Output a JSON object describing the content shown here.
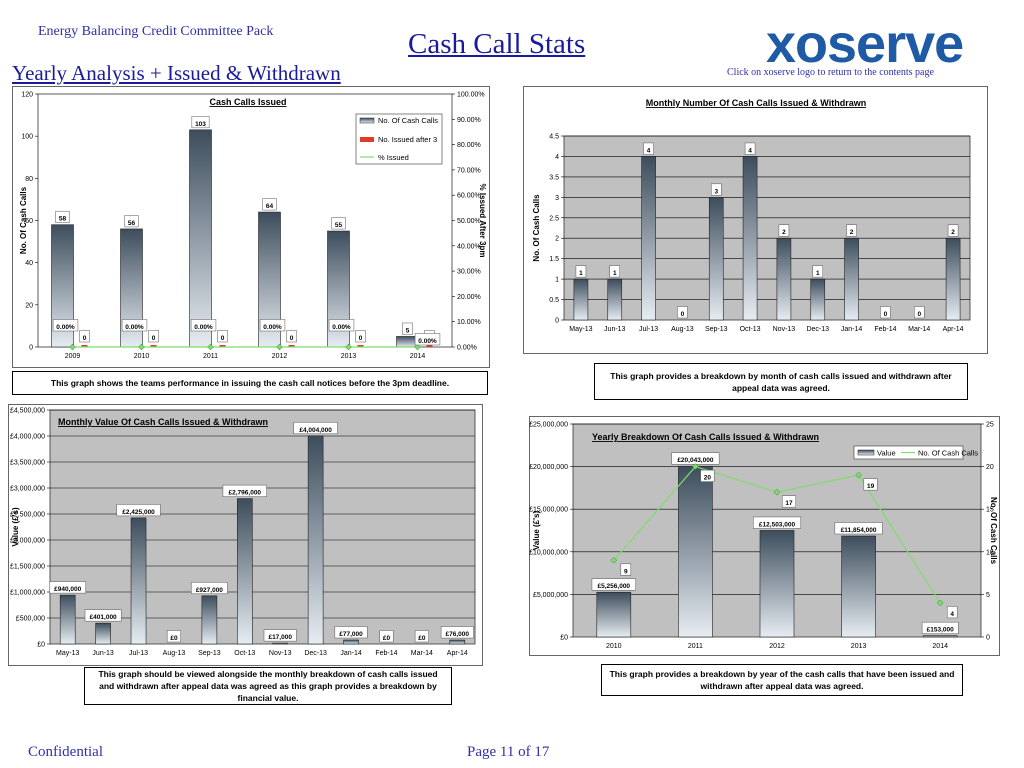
{
  "header": {
    "pack_title": "Energy Balancing Credit Committee Pack",
    "main_title": "Cash Call Stats",
    "section_title": "Yearly Analysis + Issued & Withdrawn",
    "logo_text": "xoserve",
    "logo_hint": "Click on xoserve logo to return to the contents page"
  },
  "footer": {
    "confidential": "Confidential",
    "page": "Page 11 of 17"
  },
  "captions": {
    "c1": "This graph shows the teams performance in issuing the cash call notices before the 3pm deadline.",
    "c2": "This graph provides a breakdown by month of cash calls issued and withdrawn after appeal data was agreed.",
    "c3": "This graph should be viewed alongside the monthly breakdown of cash calls issued and withdrawn after appeal data was agreed as this graph provides a breakdown by financial value.",
    "c4": "This graph provides a breakdown by year of the cash calls that have been issued and withdrawn after appeal data was agreed."
  },
  "colors": {
    "plot_bg": "#c0c0c0",
    "bar_dark": "#3d4d5c",
    "bar_light": "#e6ecf2",
    "green": "#7fdc6a",
    "red": "#e03a2a",
    "title_blue": "#1a1a9c"
  },
  "chart_data": [
    {
      "id": "cash-calls-issued",
      "type": "bar",
      "title": "Cash Calls Issued",
      "categories": [
        "2009",
        "2010",
        "2011",
        "2012",
        "2013",
        "2014"
      ],
      "series": [
        {
          "name": "No. Of Cash Calls",
          "values": [
            58,
            56,
            103,
            64,
            55,
            5
          ],
          "labels": [
            "58",
            "56",
            "103",
            "64",
            "55",
            "5"
          ]
        },
        {
          "name": "No. Issued after 3",
          "values": [
            0,
            0,
            0,
            0,
            0,
            0
          ],
          "labels": [
            "0",
            "0",
            "0",
            "0",
            "0",
            "0"
          ]
        },
        {
          "name": "% Issued",
          "values": [
            0,
            0,
            0,
            0,
            0,
            0
          ],
          "labels": [
            "0.00%",
            "0.00%",
            "0.00%",
            "0.00%",
            "0.00%",
            "0.00%"
          ],
          "axis": "right"
        }
      ],
      "ylabel": "No. Of Cash Calls",
      "y2label": "% Issued After 3pm",
      "ylim": [
        0,
        120
      ],
      "yticks": [
        "0",
        "20",
        "40",
        "60",
        "80",
        "100",
        "120"
      ],
      "y2lim": [
        0,
        100
      ],
      "y2ticks": [
        "0.00%",
        "10.00%",
        "20.00%",
        "30.00%",
        "40.00%",
        "50.00%",
        "60.00%",
        "70.00%",
        "80.00%",
        "90.00%",
        "100.00%"
      ],
      "legend": "top-right",
      "grid": false
    },
    {
      "id": "monthly-number",
      "type": "bar",
      "title": "Monthly Number Of Cash Calls Issued & Withdrawn",
      "categories": [
        "May-13",
        "Jun-13",
        "Jul-13",
        "Aug-13",
        "Sep-13",
        "Oct-13",
        "Nov-13",
        "Dec-13",
        "Jan-14",
        "Feb-14",
        "Mar-14",
        "Apr-14"
      ],
      "values": [
        1,
        1,
        4,
        0,
        3,
        4,
        2,
        1,
        2,
        0,
        0,
        2
      ],
      "labels": [
        "1",
        "1",
        "4",
        "0",
        "3",
        "4",
        "2",
        "1",
        "2",
        "0",
        "0",
        "2"
      ],
      "ylabel": "No. Of Cash Calls",
      "ylim": [
        0,
        4.5
      ],
      "yticks": [
        "0",
        "0.5",
        "1",
        "1.5",
        "2",
        "2.5",
        "3",
        "3.5",
        "4",
        "4.5"
      ],
      "grid": true
    },
    {
      "id": "monthly-value",
      "type": "bar",
      "title": "Monthly Value Of Cash Calls Issued & Withdrawn",
      "categories": [
        "May-13",
        "Jun-13",
        "Jul-13",
        "Aug-13",
        "Sep-13",
        "Oct-13",
        "Nov-13",
        "Dec-13",
        "Jan-14",
        "Feb-14",
        "Mar-14",
        "Apr-14"
      ],
      "values": [
        940000,
        401000,
        2425000,
        0,
        927000,
        2796000,
        17000,
        4004000,
        77000,
        0,
        0,
        76000
      ],
      "labels": [
        "£940,000",
        "£401,000",
        "£2,425,000",
        "£0",
        "£927,000",
        "£2,796,000",
        "£17,000",
        "£4,004,000",
        "£77,000",
        "£0",
        "£0",
        "£76,000"
      ],
      "ylabel": "Value (£'s)",
      "ylim": [
        0,
        4500000
      ],
      "yticks": [
        "£0",
        "£500,000",
        "£1,000,000",
        "£1,500,000",
        "£2,000,000",
        "£2,500,000",
        "£3,000,000",
        "£3,500,000",
        "£4,000,000",
        "£4,500,000"
      ],
      "grid": true
    },
    {
      "id": "yearly-breakdown",
      "type": "bar",
      "title": "Yearly Breakdown Of Cash Calls Issued & Withdrawn",
      "categories": [
        "2010",
        "2011",
        "2012",
        "2013",
        "2014"
      ],
      "series": [
        {
          "name": "Value",
          "values": [
            5256000,
            20043000,
            12503000,
            11854000,
            153000
          ],
          "labels": [
            "£5,256,000",
            "£20,043,000",
            "£12,503,000",
            "£11,854,000",
            "£153,000"
          ]
        },
        {
          "name": "No. Of Cash Calls",
          "values": [
            9,
            20,
            17,
            19,
            4
          ],
          "labels": [
            "9",
            "20",
            "17",
            "19",
            "4"
          ],
          "axis": "right"
        }
      ],
      "ylabel": "Value (£'s)",
      "y2label": "No. Of Cash Calls",
      "ylim": [
        0,
        25000000
      ],
      "yticks": [
        "£0",
        "£5,000,000",
        "£10,000,000",
        "£15,000,000",
        "£20,000,000",
        "£25,000,000"
      ],
      "y2lim": [
        0,
        25
      ],
      "y2ticks": [
        "0",
        "5",
        "10",
        "15",
        "20",
        "25"
      ],
      "legend": "top-right",
      "grid": true
    }
  ]
}
